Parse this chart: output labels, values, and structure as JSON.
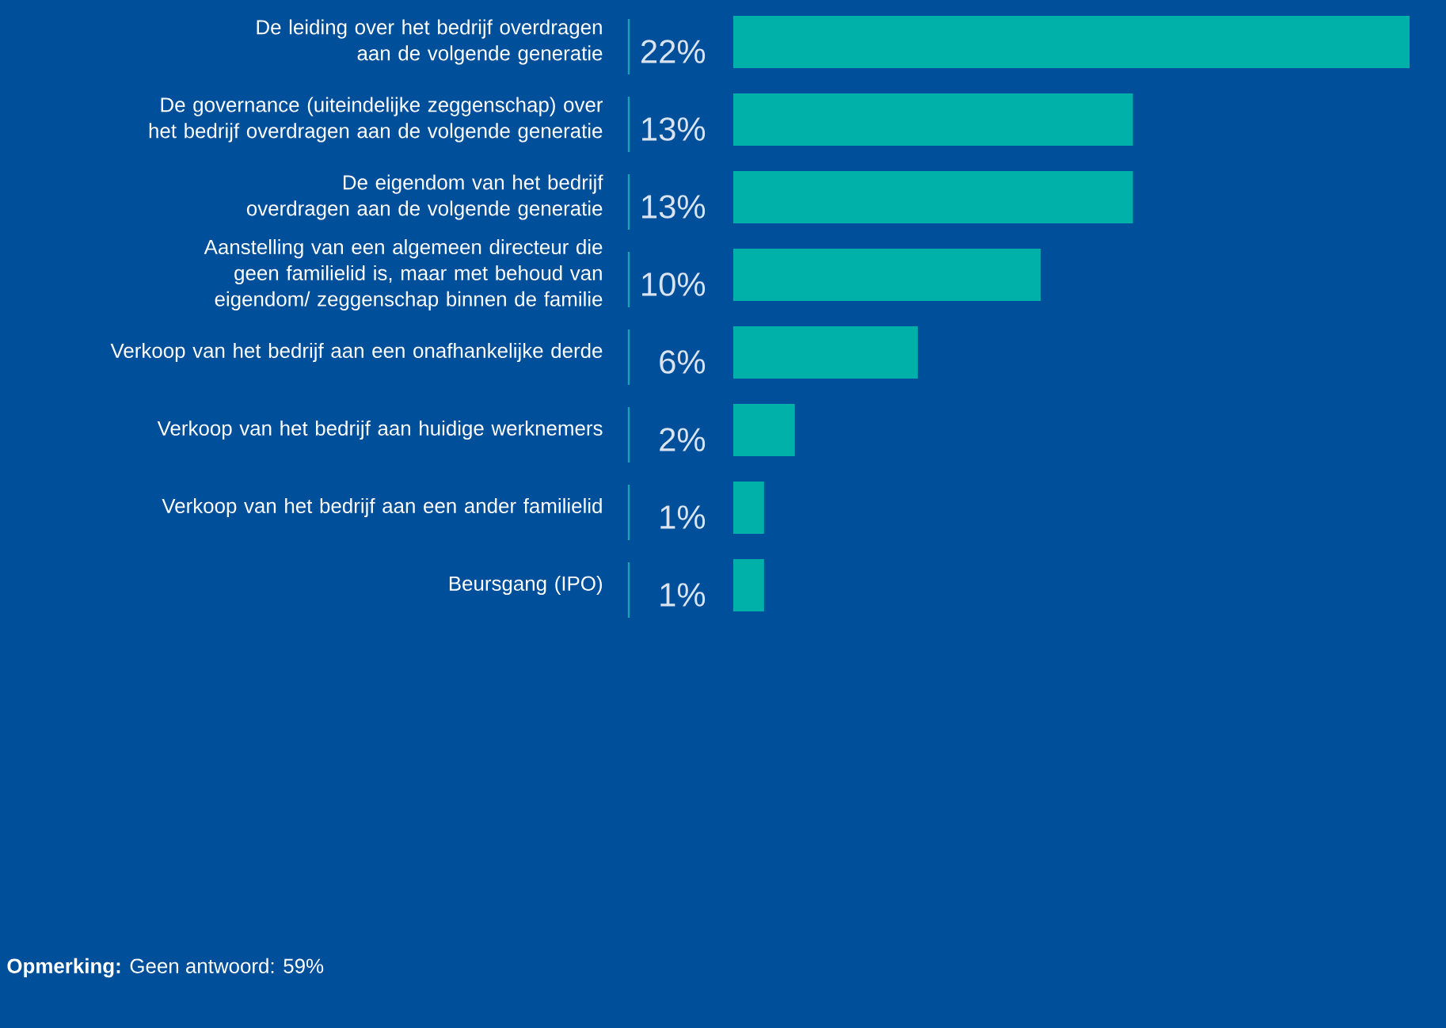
{
  "chart_data": {
    "type": "bar",
    "orientation": "horizontal",
    "categories": [
      "De leiding over het bedrijf overdragen aan de volgende generatie",
      "De governance (uiteindelijke zeggenschap) over het bedrijf overdragen aan de volgende generatie",
      "De eigendom van het bedrijf overdragen aan de volgende generatie",
      "Aanstelling van een algemeen directeur die geen familielid is, maar met behoud van eigendom/ zeggenschap binnen de familie",
      "Verkoop van het bedrijf aan een onafhankelijke derde",
      "Verkoop van het bedrijf aan huidige werknemers",
      "Verkoop van het bedrijf aan een ander familielid",
      "Beursgang (IPO)"
    ],
    "values": [
      22,
      13,
      13,
      10,
      6,
      2,
      1,
      1
    ],
    "value_labels": [
      "22%",
      "13%",
      "13%",
      "10%",
      "6%",
      "2%",
      "1%",
      "1%"
    ],
    "color": "#00b1a9",
    "annotations": [
      "**Opmerking:** Geen antwoord: 59%"
    ]
  }
}
